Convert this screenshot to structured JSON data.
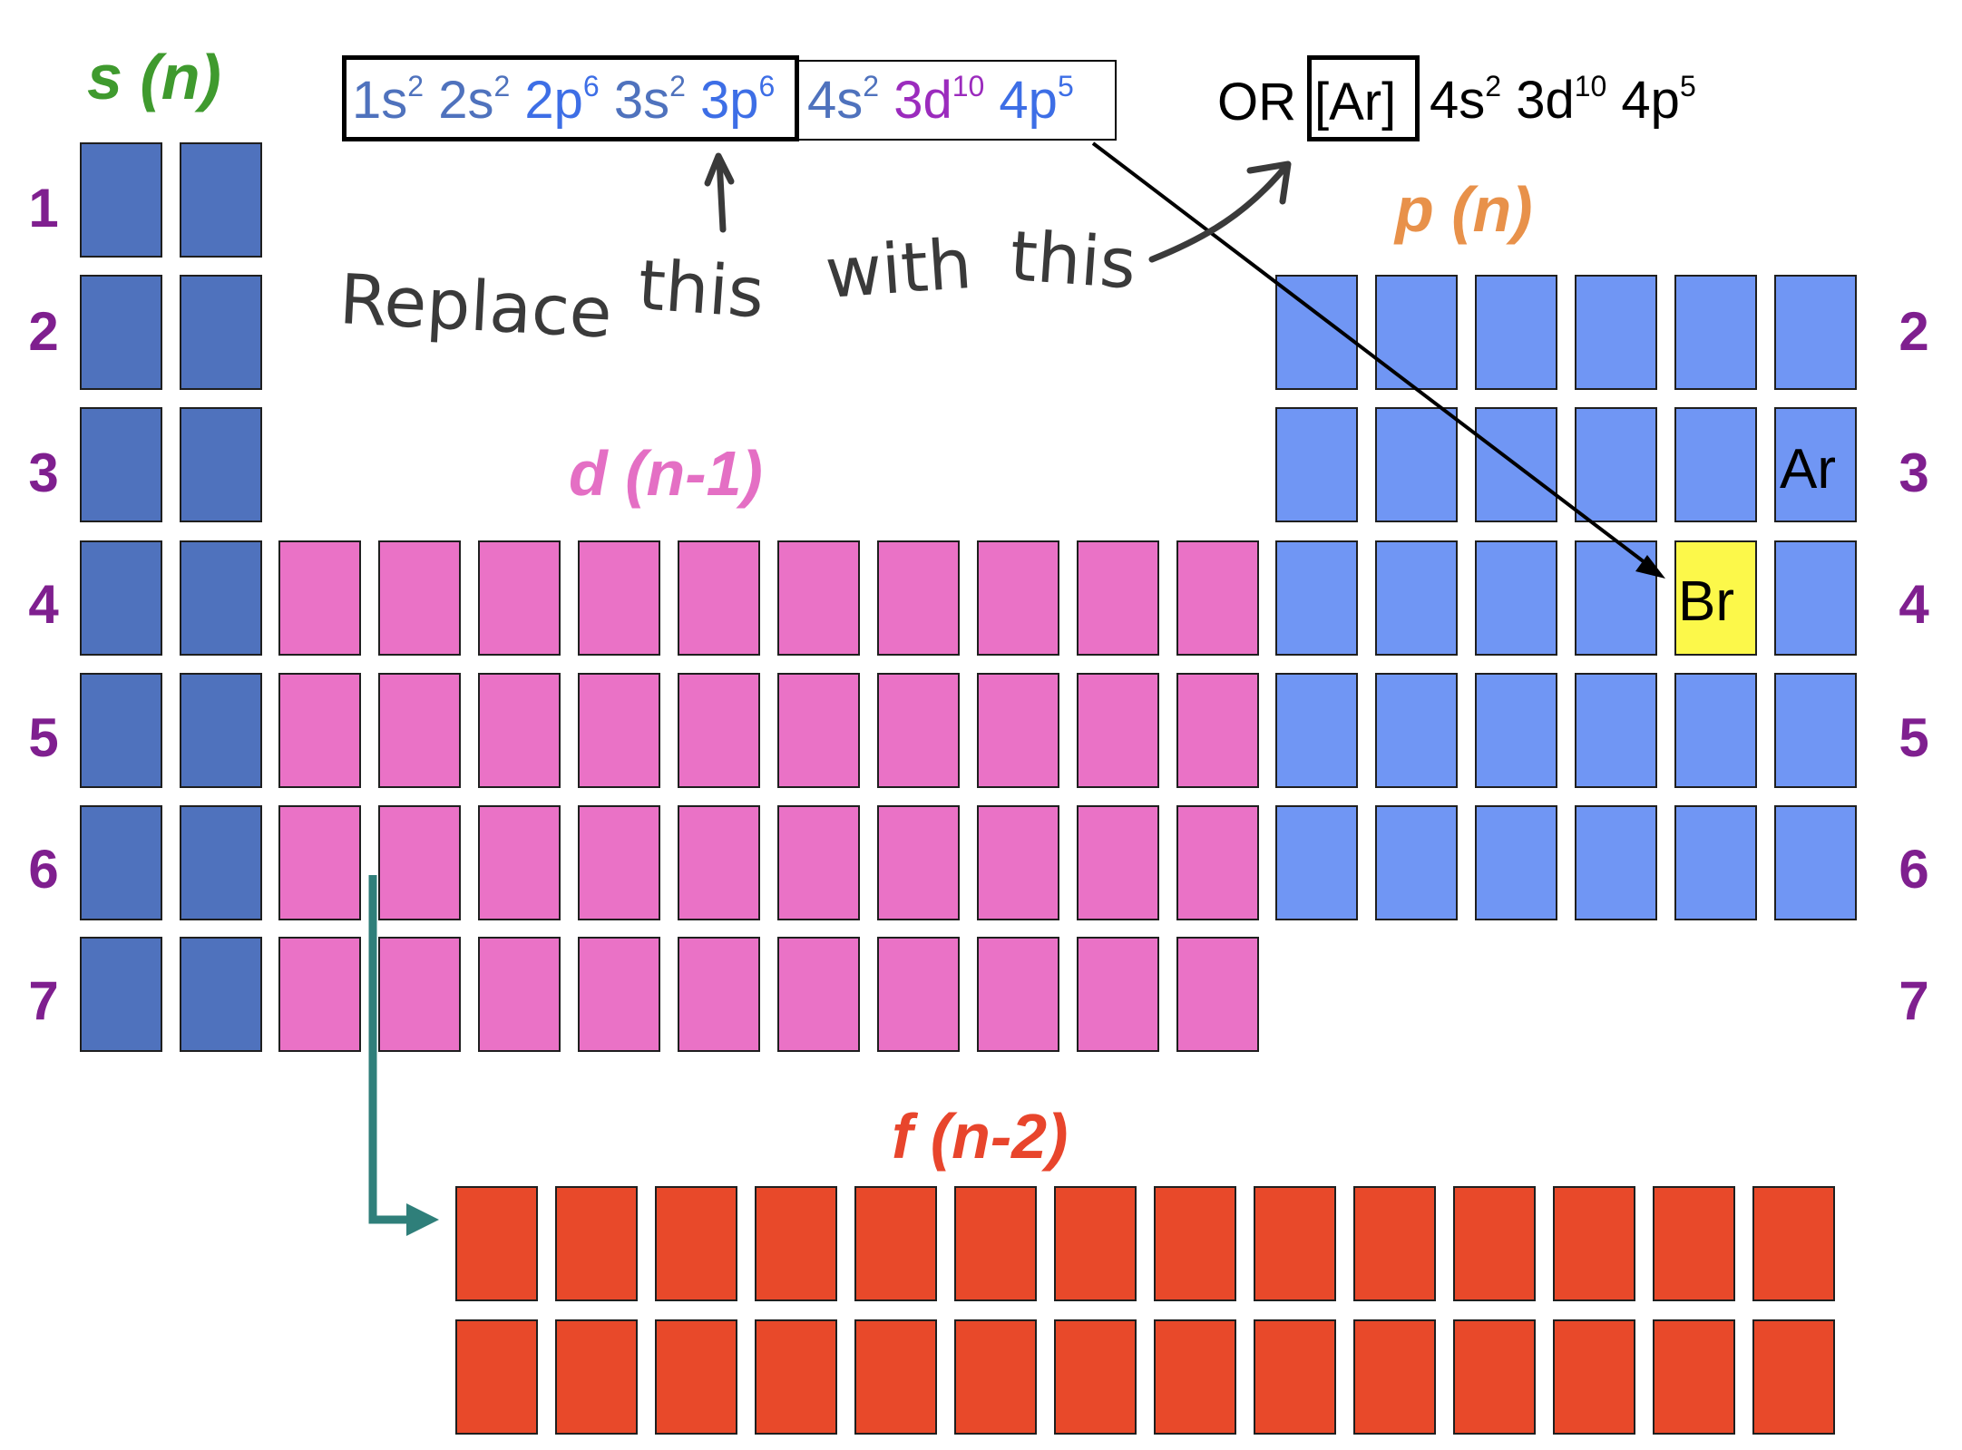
{
  "labels": {
    "s_block": "s (n)",
    "p_block": "p (n)",
    "d_block": "d (n-1)",
    "f_block": "f (n-2)"
  },
  "row_numbers_left": [
    "1",
    "2",
    "3",
    "4",
    "5",
    "6",
    "7"
  ],
  "row_numbers_right": [
    "2",
    "3",
    "4",
    "5",
    "6",
    "7"
  ],
  "elements": {
    "argon": "Ar",
    "bromine": "Br"
  },
  "full_configuration": {
    "terms": [
      {
        "orbital": "1s",
        "electrons": "2",
        "color": "#4f72bd"
      },
      {
        "orbital": "2s",
        "electrons": "2",
        "color": "#4f72bd"
      },
      {
        "orbital": "2p",
        "electrons": "6",
        "color": "#3d6ee6"
      },
      {
        "orbital": "3s",
        "electrons": "2",
        "color": "#4f72bd"
      },
      {
        "orbital": "3p",
        "electrons": "6",
        "color": "#3d6ee6"
      },
      {
        "orbital": "4s",
        "electrons": "2",
        "color": "#4f72bd"
      },
      {
        "orbital": "3d",
        "electrons": "10",
        "color": "#9b2bbd"
      },
      {
        "orbital": "4p",
        "electrons": "5",
        "color": "#3d6ee6"
      }
    ]
  },
  "shorthand_configuration": {
    "or_text": "OR",
    "core": "[Ar]",
    "terms": [
      {
        "orbital": "4s",
        "electrons": "2"
      },
      {
        "orbital": "3d",
        "electrons": "10"
      },
      {
        "orbital": "4p",
        "electrons": "5"
      }
    ]
  },
  "handwritten_note": {
    "word1": "Replace",
    "word2": "this",
    "word3": "with",
    "word4": "this"
  },
  "colors": {
    "s_block": "#4f72bd",
    "d_block": "#ea72c6",
    "p_block": "#7096f4",
    "f_block": "#e8492a",
    "highlight": "#fcf84a",
    "row_label": "#7f1f8f",
    "s_label": "#3f9a2e",
    "p_label": "#e8914a",
    "d_label": "#e46fc4",
    "f_label": "#e8452c",
    "arrow_teal": "#2f7f7a"
  }
}
